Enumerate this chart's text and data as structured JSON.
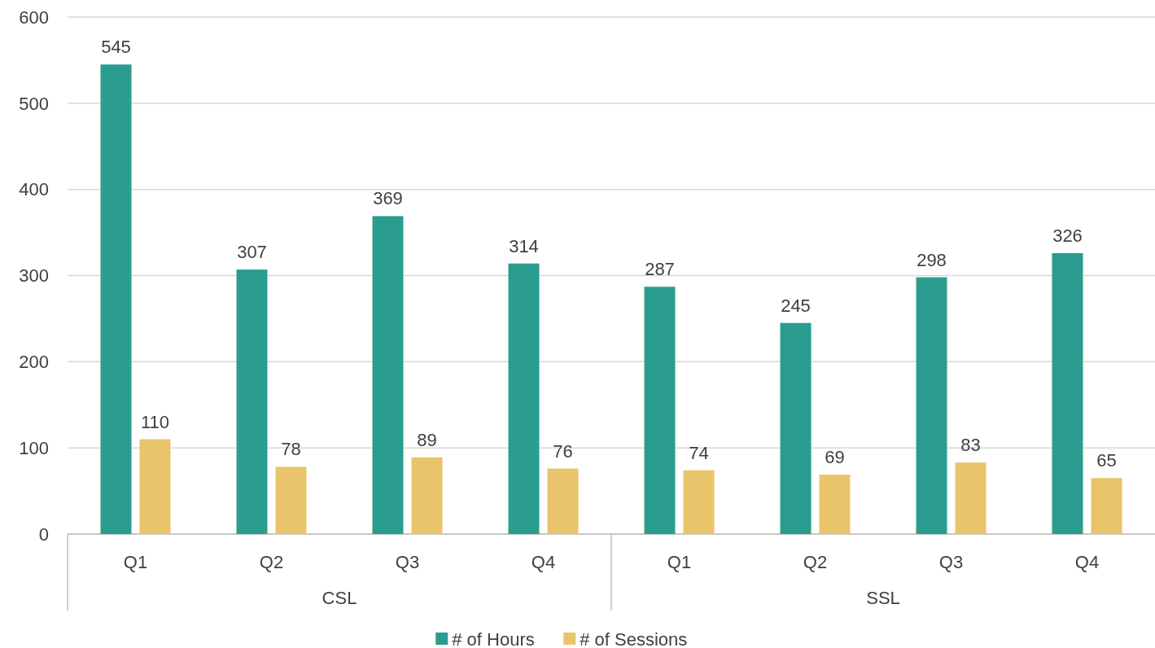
{
  "chart_data": {
    "type": "bar",
    "categories": [
      "Q1",
      "Q2",
      "Q3",
      "Q4",
      "Q1",
      "Q2",
      "Q3",
      "Q4"
    ],
    "series": [
      {
        "name": "# of Hours",
        "color": "#2a9d8f",
        "values": [
          545,
          307,
          369,
          314,
          287,
          245,
          298,
          326
        ]
      },
      {
        "name": "# of Sessions",
        "color": "#e9c46a",
        "values": [
          110,
          78,
          89,
          76,
          74,
          69,
          83,
          65
        ]
      }
    ],
    "annotations": [
      "CSL",
      "SSL"
    ],
    "ylim": [
      0,
      600
    ],
    "yticks": [
      0,
      100,
      200,
      300,
      400,
      500,
      600
    ],
    "grid": "y",
    "legend": "bottom",
    "data_labels": true
  }
}
